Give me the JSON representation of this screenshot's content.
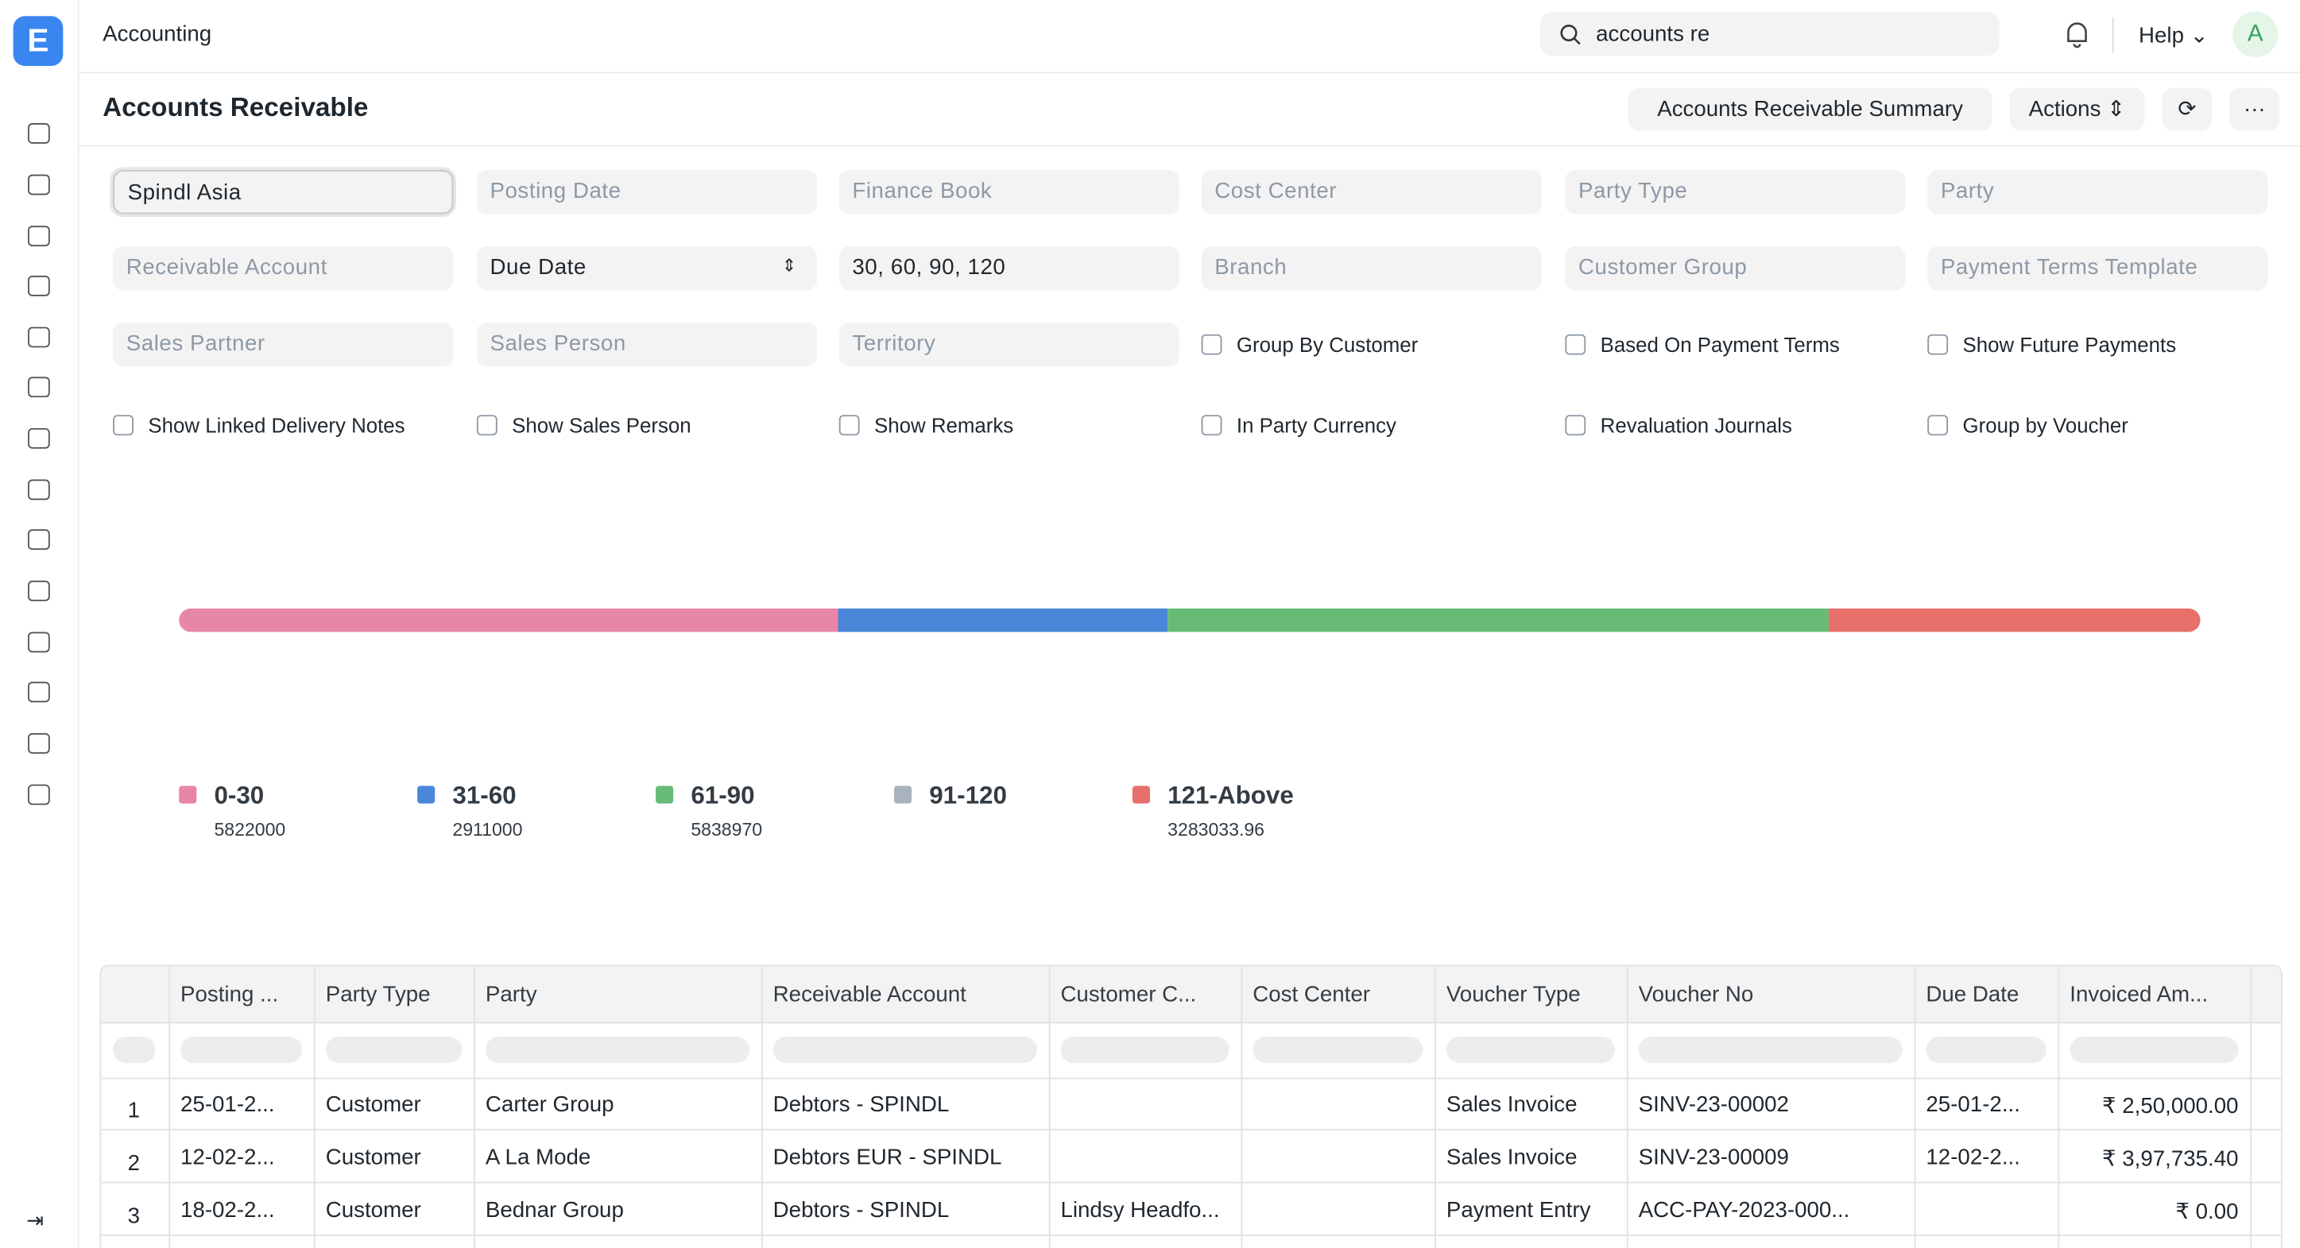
{
  "header": {
    "module": "Accounting",
    "search": "accounts re",
    "help": "Help",
    "avatar": "A"
  },
  "page": {
    "title": "Accounts Receivable",
    "buttons": [
      "Accounts Receivable Summary",
      "Actions"
    ]
  },
  "filters": {
    "company": "Spindl Asia",
    "placeholders": [
      "Posting Date",
      "Finance Book",
      "Cost Center",
      "Party Type",
      "Party",
      "Receivable Account"
    ],
    "ageing_based_on": "Due Date",
    "range": "30, 60, 90, 120",
    "placeholders2": [
      "Branch",
      "Customer Group",
      "Payment Terms Template",
      "Sales Partner",
      "Sales Person",
      "Territory"
    ],
    "checkboxes": [
      "Group By Customer",
      "Based On Payment Terms",
      "Show Future Payments",
      "Show Linked Delivery Notes",
      "Show Sales Person",
      "Show Remarks",
      "In Party Currency",
      "Revaluation Journals",
      "Group by Voucher"
    ]
  },
  "chart_data": {
    "type": "percentage",
    "categories": [
      "0-30",
      "31-60",
      "61-90",
      "91-120",
      "121-Above"
    ],
    "values": [
      5822000,
      2911000,
      5838970,
      null,
      3283033.96
    ],
    "colors": [
      "#e886aa",
      "#4a87d8",
      "#67bb76",
      "#a9b3bd",
      "#e7706b"
    ]
  },
  "table": {
    "columns": [
      "Posting ...",
      "Party Type",
      "Party",
      "Receivable Account",
      "Customer C...",
      "Cost Center",
      "Voucher Type",
      "Voucher No",
      "Due Date",
      "Invoiced Am..."
    ],
    "rows": [
      [
        "1",
        "25-01-2...",
        "Customer",
        "Carter Group",
        "Debtors - SPINDL",
        null,
        null,
        "Sales Invoice",
        "SINV-23-00002",
        "25-01-2...",
        "₹ 2,50,000.00"
      ],
      [
        "2",
        "12-02-2...",
        "Customer",
        "A La Mode",
        "Debtors EUR - SPINDL",
        null,
        null,
        "Sales Invoice",
        "SINV-23-00009",
        "12-02-2...",
        "₹ 3,97,735.40"
      ],
      [
        "3",
        "18-02-2...",
        "Customer",
        "Bednar Group",
        "Debtors - SPINDL",
        "Lindsy Headfo...",
        null,
        "Payment Entry",
        "ACC-PAY-2023-000...",
        null,
        "₹ 0.00"
      ]
    ]
  }
}
